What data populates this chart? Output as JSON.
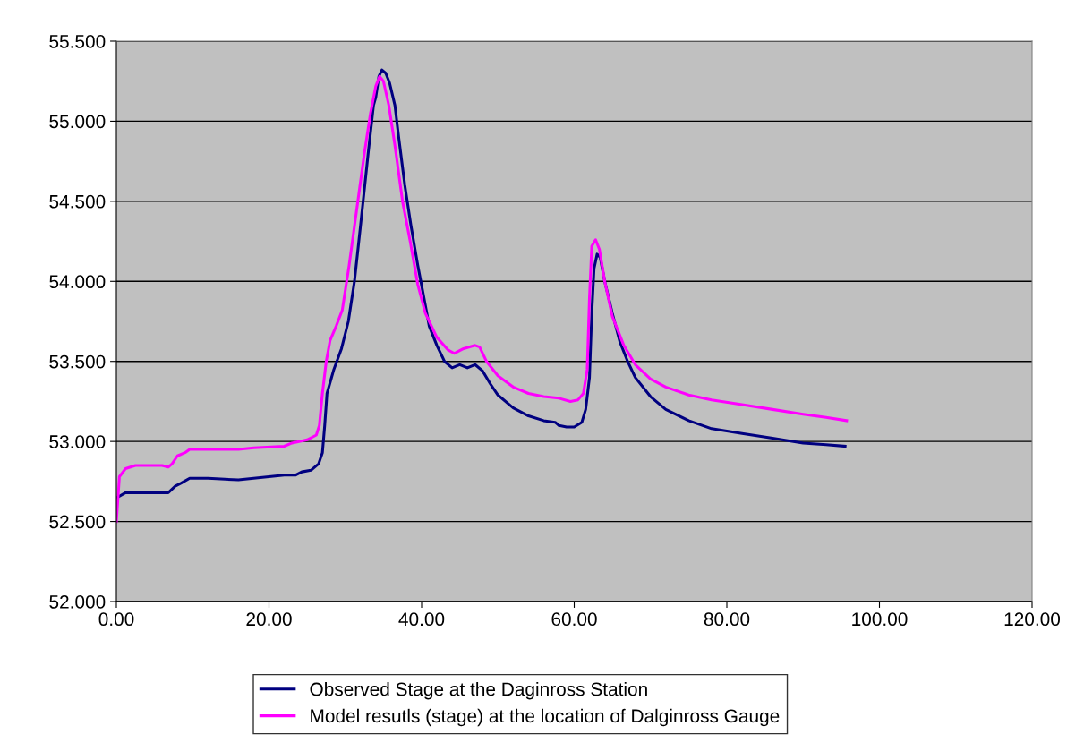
{
  "chart_data": {
    "type": "line",
    "xlim": [
      0,
      120
    ],
    "xticks": [
      {
        "value": 0,
        "label": "0.00"
      },
      {
        "value": 20,
        "label": "20.00"
      },
      {
        "value": 40,
        "label": "40.00"
      },
      {
        "value": 60,
        "label": "60.00"
      },
      {
        "value": 80,
        "label": "80.00"
      },
      {
        "value": 100,
        "label": "100.00"
      },
      {
        "value": 120,
        "label": "120.00"
      }
    ],
    "ylim": [
      52,
      55.5
    ],
    "yticks": [
      {
        "value": 52,
        "label": "52.000"
      },
      {
        "value": 52.5,
        "label": "52.500"
      },
      {
        "value": 53,
        "label": "53.000"
      },
      {
        "value": 53.5,
        "label": "53.500"
      },
      {
        "value": 54,
        "label": "54.000"
      },
      {
        "value": 54.5,
        "label": "54.500"
      },
      {
        "value": 55,
        "label": "55.000"
      },
      {
        "value": 55.5,
        "label": "55.500"
      }
    ],
    "grid": "y",
    "legend": "bottom",
    "marker": "none",
    "line_style": "solid",
    "series": [
      {
        "name": "Observed Stage at the Daginross Station",
        "color": "#000080",
        "x": [
          0.1,
          1.2,
          6.8,
          7.7,
          8.5,
          9.6,
          12,
          16,
          20,
          22,
          23.5,
          24.3,
          25.5,
          26.5,
          27,
          27.3,
          27.6,
          28.5,
          29.5,
          30.4,
          31.2,
          32,
          33,
          33.7,
          34,
          34.4,
          34.8,
          35.3,
          35.8,
          36.5,
          37,
          37.8,
          38.6,
          39.5,
          40.3,
          41,
          42,
          43,
          44,
          45,
          46,
          47,
          48,
          49,
          50,
          52,
          54,
          56,
          57.5,
          58,
          59,
          60,
          61,
          61.5,
          62,
          62.3,
          62.6,
          63,
          63.4,
          64,
          65,
          66,
          67,
          68,
          70,
          72,
          75,
          78,
          82,
          86,
          90,
          93,
          95.5
        ],
        "values": [
          52.65,
          52.68,
          52.68,
          52.72,
          52.74,
          52.77,
          52.77,
          52.76,
          52.78,
          52.79,
          52.79,
          52.81,
          52.82,
          52.86,
          52.93,
          53.1,
          53.3,
          53.45,
          53.58,
          53.75,
          54.0,
          54.35,
          54.8,
          55.1,
          55.15,
          55.28,
          55.32,
          55.3,
          55.24,
          55.1,
          54.9,
          54.6,
          54.35,
          54.1,
          53.9,
          53.72,
          53.6,
          53.5,
          53.46,
          53.48,
          53.46,
          53.48,
          53.44,
          53.36,
          53.29,
          53.21,
          53.16,
          53.13,
          53.12,
          53.1,
          53.09,
          53.09,
          53.12,
          53.2,
          53.4,
          53.8,
          54.08,
          54.17,
          54.15,
          54.0,
          53.8,
          53.62,
          53.5,
          53.4,
          53.28,
          53.2,
          53.13,
          53.08,
          53.05,
          53.02,
          52.99,
          52.98,
          52.97
        ]
      },
      {
        "name": "Model resutls (stage) at the location of Dalginross Gauge",
        "color": "#ff00ff",
        "x": [
          0,
          0.4,
          1.2,
          2.5,
          6,
          6.8,
          7.3,
          8,
          9,
          9.6,
          11,
          16,
          18,
          22,
          23,
          25,
          26.2,
          26.6,
          27,
          27.5,
          28,
          28.8,
          29.6,
          30.5,
          31.5,
          32.5,
          33.3,
          34,
          34.5,
          35,
          35.7,
          36.5,
          37.5,
          38.5,
          39.5,
          40.5,
          42,
          43.5,
          44.3,
          45.5,
          47,
          47.6,
          48.5,
          50,
          52,
          54,
          56,
          58,
          59.5,
          60.5,
          61.2,
          61.7,
          62,
          62.3,
          62.8,
          63.3,
          64,
          65,
          66.5,
          68,
          70,
          72,
          75,
          78,
          82,
          86,
          90,
          93,
          95.7
        ],
        "values": [
          52.5,
          52.78,
          52.83,
          52.85,
          52.85,
          52.84,
          52.86,
          52.91,
          52.93,
          52.95,
          52.95,
          52.95,
          52.96,
          52.97,
          52.99,
          53.01,
          53.04,
          53.1,
          53.3,
          53.5,
          53.63,
          53.72,
          53.82,
          54.1,
          54.45,
          54.8,
          55.05,
          55.22,
          55.28,
          55.25,
          55.1,
          54.85,
          54.5,
          54.25,
          53.98,
          53.8,
          53.65,
          53.57,
          53.55,
          53.58,
          53.6,
          53.59,
          53.5,
          53.41,
          53.34,
          53.3,
          53.28,
          53.27,
          53.25,
          53.26,
          53.3,
          53.45,
          53.9,
          54.22,
          54.26,
          54.2,
          54.0,
          53.78,
          53.6,
          53.48,
          53.39,
          53.34,
          53.29,
          53.26,
          53.23,
          53.2,
          53.17,
          53.15,
          53.13
        ]
      }
    ]
  }
}
